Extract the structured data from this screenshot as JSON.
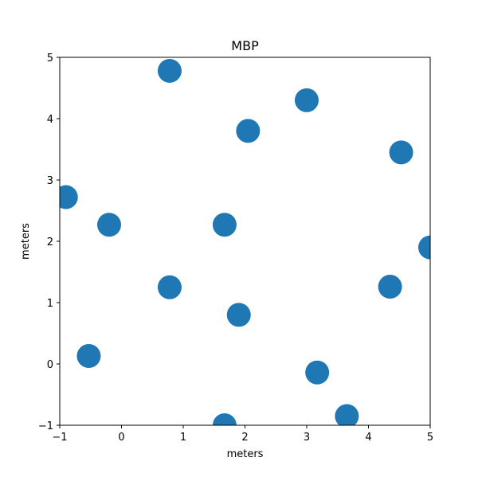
{
  "chart_data": {
    "type": "scatter",
    "title": "MBP",
    "xlabel": "meters",
    "ylabel": "meters",
    "xlim": [
      -1,
      5
    ],
    "ylim": [
      -1,
      5
    ],
    "xticks": [
      "−1",
      "0",
      "1",
      "2",
      "3",
      "4",
      "5"
    ],
    "yticks": [
      "−1",
      "0",
      "1",
      "2",
      "3",
      "4",
      "5"
    ],
    "grid": false,
    "marker_color": "#1f77b4",
    "series": [
      {
        "x": [
          0.78,
          3.0,
          2.05,
          4.53,
          -0.9,
          -0.2,
          1.67,
          5.0,
          0.78,
          4.35,
          1.9,
          -0.53,
          3.17,
          3.65,
          1.67
        ],
        "y": [
          4.78,
          4.3,
          3.8,
          3.45,
          2.72,
          2.27,
          2.27,
          1.9,
          1.25,
          1.26,
          0.8,
          0.13,
          -0.14,
          -0.85,
          -1.0
        ]
      }
    ]
  }
}
